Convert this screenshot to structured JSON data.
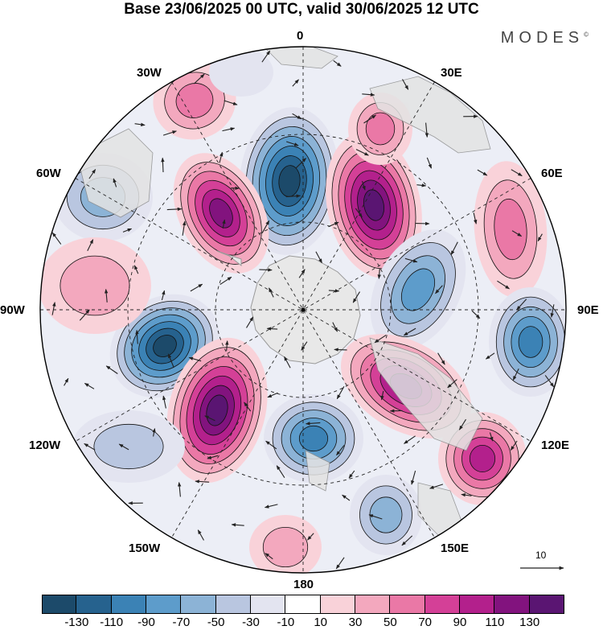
{
  "header": {
    "title": "Base 23/06/2025 00 UTC, valid 30/06/2025 12 UTC",
    "brand": "MODES",
    "brand_mark": "©"
  },
  "map": {
    "projection": "south-polar-stereographic",
    "longitude_labels": [
      "0",
      "30E",
      "60E",
      "90E",
      "120E",
      "150E",
      "180",
      "150W",
      "120W",
      "90W",
      "60W",
      "30W"
    ],
    "wind_reference_vector": "10"
  },
  "colorbar": {
    "tick_labels": [
      "-130",
      "-110",
      "-90",
      "-70",
      "-50",
      "-30",
      "-10",
      "10",
      "30",
      "50",
      "70",
      "90",
      "110",
      "130"
    ],
    "colors": [
      "#1c4a6a",
      "#26628e",
      "#3b82b5",
      "#5d9ccb",
      "#8cb3d6",
      "#b9c6e0",
      "#e3e4f0",
      "#ffffff",
      "#f9d2d9",
      "#f3a8be",
      "#ea78a6",
      "#d44097",
      "#b3208c",
      "#82137e",
      "#5a1572"
    ]
  },
  "colors": {
    "land": "#e8e8e8",
    "coast": "#9a9a9a"
  }
}
